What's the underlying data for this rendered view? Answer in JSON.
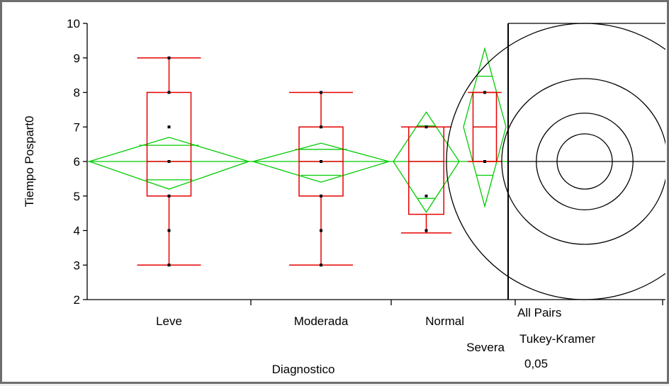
{
  "chart_data": {
    "type": "box",
    "ylabel": "Tiempo Pospart0",
    "xlabel": "Diagnostico",
    "ylim": [
      2,
      10
    ],
    "yticks": [
      2,
      3,
      4,
      5,
      6,
      7,
      8,
      9,
      10
    ],
    "grand_mean": 6,
    "categories": [
      "Leve",
      "Moderada",
      "Normal",
      "Severa"
    ],
    "groups": [
      {
        "name": "Leve",
        "points": [
          9,
          8,
          7,
          6,
          5,
          4,
          3
        ],
        "box": {
          "whisker_low": 3,
          "q1": 5,
          "median": 6,
          "q3": 8,
          "whisker_high": 9
        },
        "mean": 6,
        "mean_ci": [
          5.2,
          6.7
        ],
        "overlap_marks": [
          5.47,
          6.47
        ]
      },
      {
        "name": "Moderada",
        "points": [
          8,
          7,
          6,
          5,
          4,
          3
        ],
        "box": {
          "whisker_low": 3,
          "q1": 5,
          "median": 6,
          "q3": 7,
          "whisker_high": 8
        },
        "mean": 6,
        "mean_ci": [
          5.4,
          6.53
        ],
        "overlap_marks": [
          5.6,
          6.35
        ]
      },
      {
        "name": "Normal",
        "points": [
          7,
          5,
          4
        ],
        "box": {
          "whisker_low": 3.93,
          "q1": 4.47,
          "median": 6,
          "q3": 7,
          "whisker_high": 7
        },
        "mean": 6,
        "mean_ci": [
          4.53,
          7.43
        ],
        "overlap_marks": [
          4.93,
          7.03
        ]
      },
      {
        "name": "Severa",
        "points": [
          8,
          6
        ],
        "box": {
          "whisker_low": 6,
          "q1": 6,
          "median": 7,
          "q3": 8,
          "whisker_high": 8
        },
        "mean": 7,
        "mean_ci": [
          4.7,
          9.27
        ],
        "overlap_marks": [
          5.6,
          8.47
        ]
      }
    ],
    "comparison_circles": {
      "label_lines": [
        "All Pairs",
        "Tukey-Kramer",
        "0,05"
      ],
      "center_y": 6,
      "radii_data_units": [
        4,
        2.4,
        1.4,
        0.8
      ]
    }
  }
}
